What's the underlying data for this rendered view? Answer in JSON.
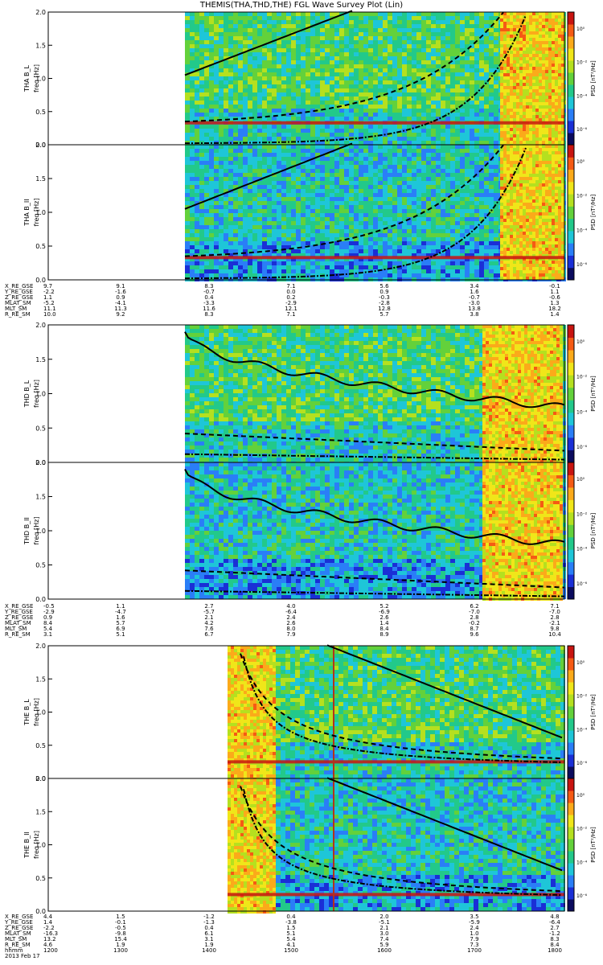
{
  "title": "THEMIS(THA,THD,THE) FGL Wave Survey Plot (Lin)",
  "colors": {
    "cmap": [
      "#0b0b5e",
      "#1a2fd6",
      "#2a7ef7",
      "#1ec6d8",
      "#22c98a",
      "#63d13b",
      "#b5e01f",
      "#f0e619",
      "#fbaa1a",
      "#f55a14",
      "#c81410"
    ],
    "curve": "#000000",
    "frame": "#000000"
  },
  "panels": [
    {
      "name": "THA B_L",
      "ylabel_top": "THA B_L",
      "ylabel_bot": "freq [Hz]",
      "cbar": "PSD [nT²/Hz]"
    },
    {
      "name": "THA B_II",
      "ylabel_top": "THA B_II",
      "ylabel_bot": "freq [Hz]",
      "cbar": "PSD [nT²/Hz]"
    },
    {
      "name": "THD B_L",
      "ylabel_top": "THD B_L",
      "ylabel_bot": "freq [Hz]",
      "cbar": "PSD [nT²/Hz]"
    },
    {
      "name": "THD B_II",
      "ylabel_top": "THD B_II",
      "ylabel_bot": "freq [Hz]",
      "cbar": "PSD [nT²/Hz]"
    },
    {
      "name": "THE B_L",
      "ylabel_top": "THE B_L",
      "ylabel_bot": "freq [Hz]",
      "cbar": "PSD [nT²/Hz]"
    },
    {
      "name": "THE B_II",
      "ylabel_top": "THE B_II",
      "ylabel_bot": "freq [Hz]",
      "cbar": "PSD [nT²/Hz]"
    }
  ],
  "yticks": [
    "0.0",
    "0.5",
    "1.0",
    "1.5",
    "2.0"
  ],
  "cbar_ticks": [
    "10⁰",
    "10⁻²",
    "10⁻⁴",
    "10⁻⁶"
  ],
  "ephem_tha": {
    "labels": [
      "X_RE_GSE",
      "Y_RE_GSE",
      "Z_RE_GSE",
      "MLAT_SM",
      "MLT_SM",
      "R_RE_SM"
    ],
    "cols": [
      [
        "9.7",
        "-2.2",
        "1.1",
        "-5.2",
        "11.1",
        "10.0"
      ],
      [
        "9.1",
        "-1.6",
        "0.9",
        "-4.1",
        "11.3",
        "9.2"
      ],
      [
        "8.3",
        "-0.7",
        "0.4",
        "-3.3",
        "11.6",
        "8.3"
      ],
      [
        "7.1",
        "0.0",
        "0.2",
        "-2.9",
        "12.1",
        "7.1"
      ],
      [
        "5.6",
        "0.9",
        "-0.3",
        "-2.8",
        "12.8",
        "5.7"
      ],
      [
        "3.4",
        "1.6",
        "-0.7",
        "-3.0",
        "13.8",
        "3.8"
      ],
      [
        "-0.1",
        "1.1",
        "-0.6",
        "1.3",
        "18.2",
        "1.4"
      ]
    ]
  },
  "ephem_thd": {
    "labels": [
      "X_RE_GSE",
      "Y_RE_GSE",
      "Z_RE_GSE",
      "MLAT_SM",
      "MLT_SM",
      "R_RE_SM"
    ],
    "cols": [
      [
        "-0.5",
        "-2.9",
        "0.9",
        "8.4",
        "5.4",
        "3.1"
      ],
      [
        "1.1",
        "-4.7",
        "1.6",
        "5.7",
        "6.9",
        "5.1"
      ],
      [
        "2.7",
        "-5.7",
        "2.1",
        "4.2",
        "7.6",
        "6.7"
      ],
      [
        "4.0",
        "-6.4",
        "2.4",
        "2.6",
        "8.0",
        "7.9"
      ],
      [
        "5.2",
        "-6.9",
        "2.6",
        "1.4",
        "8.4",
        "8.9"
      ],
      [
        "6.2",
        "-7.0",
        "2.8",
        "-0.2",
        "8.7",
        "9.6"
      ],
      [
        "7.1",
        "-7.0",
        "2.8",
        "-2.1",
        "9.8",
        "10.4"
      ]
    ]
  },
  "ephem_the": {
    "labels": [
      "X_RE_GSE",
      "Y_RE_GSE",
      "Z_RE_GSE",
      "MLAT_SM",
      "MLT_SM",
      "R_RE_SM",
      "hhmm",
      "2013 Feb 17"
    ],
    "cols": [
      [
        "4.4",
        "1.4",
        "-2.2",
        "-16.3",
        "13.2",
        "4.6",
        "1200"
      ],
      [
        "1.5",
        "-0.1",
        "-0.5",
        "-9.8",
        "15.4",
        "1.9",
        "1300"
      ],
      [
        "-1.2",
        "-1.3",
        "0.4",
        "6.1",
        "3.1",
        "1.9",
        "1400"
      ],
      [
        "0.4",
        "-3.8",
        "1.5",
        "5.1",
        "5.4",
        "4.1",
        "1500"
      ],
      [
        "2.0",
        "-5.1",
        "2.1",
        "3.0",
        "7.4",
        "5.9",
        "1600"
      ],
      [
        "3.5",
        "-5.9",
        "2.4",
        "1.0",
        "7.9",
        "7.3",
        "1700"
      ],
      [
        "4.8",
        "-6.4",
        "2.7",
        "-1.2",
        "8.3",
        "8.4",
        "1800"
      ]
    ]
  },
  "chart_data": [
    {
      "type": "heatmap",
      "panel": "THA B_L",
      "ylabel": "freq [Hz]",
      "ylim": [
        0,
        2
      ],
      "x_start_hhmm": "1400",
      "colorbar": "PSD [nT²/Hz]",
      "features": [
        "fc line near 0.33 Hz",
        "solid gyro curve rising 1.05→2.0 Hz",
        "dashed curve rising from 0.3 Hz",
        "dash-dot curve rising near end"
      ]
    },
    {
      "type": "heatmap",
      "panel": "THA B_II",
      "ylabel": "freq [Hz]",
      "ylim": [
        0,
        2
      ],
      "x_start_hhmm": "1400",
      "colorbar": "PSD [nT²/Hz]"
    },
    {
      "type": "heatmap",
      "panel": "THD B_L",
      "ylabel": "freq [Hz]",
      "ylim": [
        0,
        2
      ],
      "x_start_hhmm": "1400",
      "colorbar": "PSD [nT²/Hz]"
    },
    {
      "type": "heatmap",
      "panel": "THD B_II",
      "ylabel": "freq [Hz]",
      "ylim": [
        0,
        2
      ],
      "x_start_hhmm": "1400",
      "colorbar": "PSD [nT²/Hz]"
    },
    {
      "type": "heatmap",
      "panel": "THE B_L",
      "ylabel": "freq [Hz]",
      "ylim": [
        0,
        2
      ],
      "x_start_hhmm": "1430",
      "colorbar": "PSD [nT²/Hz]"
    },
    {
      "type": "heatmap",
      "panel": "THE B_II",
      "ylabel": "freq [Hz]",
      "ylim": [
        0,
        2
      ],
      "x_start_hhmm": "1430",
      "colorbar": "PSD [nT²/Hz]"
    }
  ]
}
